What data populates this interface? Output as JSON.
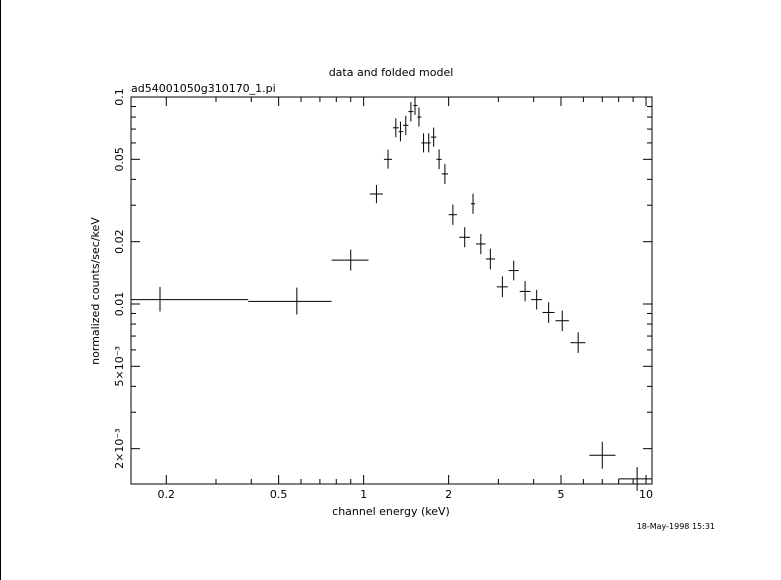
{
  "chart_data": {
    "type": "scatter",
    "title": "data and folded model",
    "subtitle": "ad54001050g310170_1.pi",
    "xlabel": "channel energy (keV)",
    "ylabel": "normalized counts/sec/keV",
    "xscale": "log",
    "yscale": "log",
    "xlim": [
      0.15,
      10.5
    ],
    "ylim": [
      0.00135,
      0.1
    ],
    "x_ticks": [
      {
        "value": 0.2,
        "label": "0.2"
      },
      {
        "value": 0.5,
        "label": "0.5"
      },
      {
        "value": 1,
        "label": "1"
      },
      {
        "value": 2,
        "label": "2"
      },
      {
        "value": 5,
        "label": "5"
      },
      {
        "value": 10,
        "label": "10"
      }
    ],
    "y_ticks": [
      {
        "value": 0.002,
        "label": "2×10⁻³"
      },
      {
        "value": 0.005,
        "label": "5×10⁻³"
      },
      {
        "value": 0.01,
        "label": "0.01"
      },
      {
        "value": 0.02,
        "label": "0.02"
      },
      {
        "value": 0.05,
        "label": "0.05"
      },
      {
        "value": 0.1,
        "label": "0.1"
      }
    ],
    "grid": false,
    "series": [
      {
        "points": [
          {
            "x": 0.19,
            "xlo": 0.15,
            "xhi": 0.39,
            "y": 0.0105,
            "ylo": 0.0092,
            "yhi": 0.0121
          },
          {
            "x": 0.58,
            "xlo": 0.39,
            "xhi": 0.77,
            "y": 0.0103,
            "ylo": 0.0089,
            "yhi": 0.012
          },
          {
            "x": 0.9,
            "xlo": 0.77,
            "xhi": 1.04,
            "y": 0.0163,
            "ylo": 0.0145,
            "yhi": 0.0183
          },
          {
            "x": 1.11,
            "xlo": 1.05,
            "xhi": 1.17,
            "y": 0.034,
            "ylo": 0.0307,
            "yhi": 0.0376
          },
          {
            "x": 1.22,
            "xlo": 1.18,
            "xhi": 1.26,
            "y": 0.05,
            "ylo": 0.0451,
            "yhi": 0.0557
          },
          {
            "x": 1.3,
            "xlo": 1.27,
            "xhi": 1.33,
            "y": 0.071,
            "ylo": 0.0639,
            "yhi": 0.079
          },
          {
            "x": 1.35,
            "xlo": 1.33,
            "xhi": 1.38,
            "y": 0.068,
            "ylo": 0.0611,
            "yhi": 0.076
          },
          {
            "x": 1.41,
            "xlo": 1.38,
            "xhi": 1.44,
            "y": 0.073,
            "ylo": 0.0655,
            "yhi": 0.0812
          },
          {
            "x": 1.47,
            "xlo": 1.44,
            "xhi": 1.5,
            "y": 0.085,
            "ylo": 0.0762,
            "yhi": 0.0945
          },
          {
            "x": 1.52,
            "xlo": 1.5,
            "xhi": 1.55,
            "y": 0.091,
            "ylo": 0.082,
            "yhi": 0.1
          },
          {
            "x": 1.57,
            "xlo": 1.55,
            "xhi": 1.6,
            "y": 0.08,
            "ylo": 0.072,
            "yhi": 0.089
          },
          {
            "x": 1.63,
            "xlo": 1.6,
            "xhi": 1.67,
            "y": 0.06,
            "ylo": 0.054,
            "yhi": 0.0668
          },
          {
            "x": 1.7,
            "xlo": 1.67,
            "xhi": 1.73,
            "y": 0.06,
            "ylo": 0.054,
            "yhi": 0.0668
          },
          {
            "x": 1.77,
            "xlo": 1.73,
            "xhi": 1.81,
            "y": 0.064,
            "ylo": 0.0575,
            "yhi": 0.0712
          },
          {
            "x": 1.85,
            "xlo": 1.81,
            "xhi": 1.89,
            "y": 0.05,
            "ylo": 0.0448,
            "yhi": 0.0558
          },
          {
            "x": 1.94,
            "xlo": 1.89,
            "xhi": 1.99,
            "y": 0.0425,
            "ylo": 0.038,
            "yhi": 0.0475
          },
          {
            "x": 2.07,
            "xlo": 2.0,
            "xhi": 2.14,
            "y": 0.027,
            "ylo": 0.0241,
            "yhi": 0.0302
          },
          {
            "x": 2.28,
            "xlo": 2.18,
            "xhi": 2.38,
            "y": 0.021,
            "ylo": 0.0188,
            "yhi": 0.0235
          },
          {
            "x": 2.44,
            "xlo": 2.4,
            "xhi": 2.48,
            "y": 0.0305,
            "ylo": 0.0273,
            "yhi": 0.0341
          },
          {
            "x": 2.6,
            "xlo": 2.5,
            "xhi": 2.7,
            "y": 0.0195,
            "ylo": 0.0174,
            "yhi": 0.0218
          },
          {
            "x": 2.81,
            "xlo": 2.71,
            "xhi": 2.92,
            "y": 0.0165,
            "ylo": 0.0147,
            "yhi": 0.0185
          },
          {
            "x": 3.1,
            "xlo": 2.96,
            "xhi": 3.24,
            "y": 0.0121,
            "ylo": 0.0108,
            "yhi": 0.0136
          },
          {
            "x": 3.4,
            "xlo": 3.26,
            "xhi": 3.54,
            "y": 0.0145,
            "ylo": 0.013,
            "yhi": 0.0162
          },
          {
            "x": 3.73,
            "xlo": 3.57,
            "xhi": 3.9,
            "y": 0.0115,
            "ylo": 0.0103,
            "yhi": 0.0129
          },
          {
            "x": 4.1,
            "xlo": 3.92,
            "xhi": 4.28,
            "y": 0.0105,
            "ylo": 0.0094,
            "yhi": 0.0117
          },
          {
            "x": 4.52,
            "xlo": 4.3,
            "xhi": 4.74,
            "y": 0.0091,
            "ylo": 0.0081,
            "yhi": 0.0102
          },
          {
            "x": 5.05,
            "xlo": 4.78,
            "xhi": 5.33,
            "y": 0.0083,
            "ylo": 0.0074,
            "yhi": 0.0093
          },
          {
            "x": 5.75,
            "xlo": 5.4,
            "xhi": 6.1,
            "y": 0.0065,
            "ylo": 0.0058,
            "yhi": 0.0073
          },
          {
            "x": 7.0,
            "xlo": 6.3,
            "xhi": 7.8,
            "y": 0.00186,
            "ylo": 0.0016,
            "yhi": 0.00216
          },
          {
            "x": 9.3,
            "xlo": 8.0,
            "xhi": 10.5,
            "y": 0.00143,
            "ylo": 0.00125,
            "yhi": 0.00163
          }
        ]
      }
    ]
  },
  "footer": {
    "timestamp": "18-May-1998 15:31"
  }
}
